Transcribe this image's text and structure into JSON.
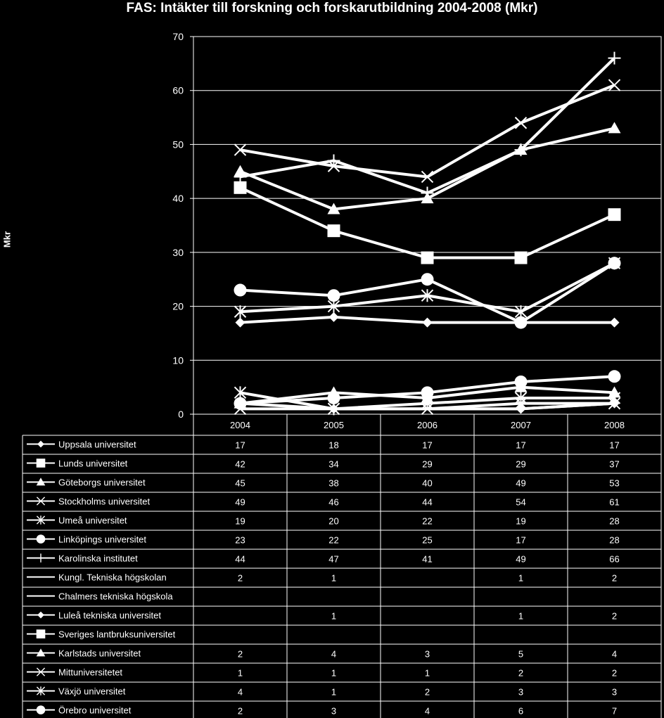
{
  "chart_data": {
    "type": "line",
    "title": "FAS: Intäkter till forskning och forskarutbildning 2004-2008 (Mkr)",
    "ylabel": "Mkr",
    "xlabel": "",
    "ylim": [
      0,
      70
    ],
    "yticks": [
      0,
      10,
      20,
      30,
      40,
      50,
      60,
      70
    ],
    "categories": [
      "2004",
      "2005",
      "2006",
      "2007",
      "2008"
    ],
    "grid": "horizontal",
    "legend": "data-table-below",
    "colors": {
      "background": "#000000",
      "series": "#ffffff",
      "grid": "#ffffff"
    },
    "series": [
      {
        "name": "Uppsala universitet",
        "marker": "diamond",
        "values": [
          17,
          18,
          17,
          17,
          17
        ]
      },
      {
        "name": "Lunds universitet",
        "marker": "square",
        "values": [
          42,
          34,
          29,
          29,
          37
        ]
      },
      {
        "name": "Göteborgs universitet",
        "marker": "triangle",
        "values": [
          45,
          38,
          40,
          49,
          53
        ]
      },
      {
        "name": "Stockholms universitet",
        "marker": "x",
        "values": [
          49,
          46,
          44,
          54,
          61
        ]
      },
      {
        "name": "Umeå universitet",
        "marker": "star",
        "values": [
          19,
          20,
          22,
          19,
          28
        ]
      },
      {
        "name": "Linköpings universitet",
        "marker": "circle",
        "values": [
          23,
          22,
          25,
          17,
          28
        ]
      },
      {
        "name": "Karolinska institutet",
        "marker": "plus",
        "values": [
          44,
          47,
          41,
          49,
          66
        ]
      },
      {
        "name": "Kungl. Tekniska högskolan",
        "marker": "dash",
        "values": [
          2,
          1,
          null,
          1,
          2
        ]
      },
      {
        "name": "Chalmers tekniska högskola",
        "marker": "dash",
        "values": [
          null,
          null,
          null,
          null,
          null
        ]
      },
      {
        "name": "Luleå tekniska universitet",
        "marker": "diamond",
        "values": [
          null,
          1,
          null,
          1,
          2
        ]
      },
      {
        "name": "Sveriges lantbruksuniversitet",
        "marker": "square",
        "values": [
          null,
          null,
          null,
          null,
          null
        ]
      },
      {
        "name": "Karlstads universitet",
        "marker": "triangle",
        "values": [
          2,
          4,
          3,
          5,
          4
        ]
      },
      {
        "name": "Mittuniversitetet",
        "marker": "x",
        "values": [
          1,
          1,
          1,
          2,
          2
        ]
      },
      {
        "name": "Växjö universitet",
        "marker": "star",
        "values": [
          4,
          1,
          2,
          3,
          3
        ]
      },
      {
        "name": "Örebro universitet",
        "marker": "circle",
        "values": [
          2,
          3,
          4,
          6,
          7
        ]
      }
    ]
  }
}
